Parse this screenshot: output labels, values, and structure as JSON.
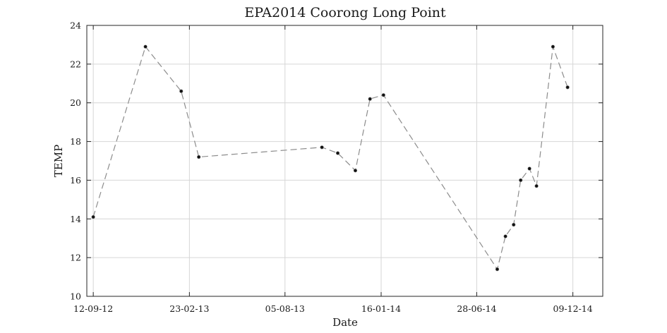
{
  "chart_data": {
    "type": "line",
    "title": "EPA2014 Coorong Long Point",
    "xlabel": "Date",
    "ylabel": "TEMP",
    "x_axis_type": "date",
    "xlim": [
      "2012-09-01",
      "2015-01-29"
    ],
    "ylim": [
      10,
      24
    ],
    "x_ticks": [
      {
        "date": "2012-09-12",
        "label": "12-09-12"
      },
      {
        "date": "2013-02-23",
        "label": "23-02-13"
      },
      {
        "date": "2013-08-05",
        "label": "05-08-13"
      },
      {
        "date": "2014-01-16",
        "label": "16-01-14"
      },
      {
        "date": "2014-06-28",
        "label": "28-06-14"
      },
      {
        "date": "2014-12-09",
        "label": "09-12-14"
      }
    ],
    "y_ticks": [
      10,
      12,
      14,
      16,
      18,
      20,
      22,
      24
    ],
    "grid": true,
    "legend": "none",
    "line_style": "dashed",
    "line_color": "#8c8c8c",
    "marker_color": "#111111",
    "series": [
      {
        "points": [
          {
            "date": "2012-09-12",
            "value": 14.1
          },
          {
            "date": "2012-12-10",
            "value": 22.9
          },
          {
            "date": "2013-02-09",
            "value": 20.6
          },
          {
            "date": "2013-03-11",
            "value": 17.2
          },
          {
            "date": "2013-10-07",
            "value": 17.7
          },
          {
            "date": "2013-11-03",
            "value": 17.4
          },
          {
            "date": "2013-12-03",
            "value": 16.5
          },
          {
            "date": "2013-12-28",
            "value": 20.2
          },
          {
            "date": "2014-01-20",
            "value": 20.4
          },
          {
            "date": "2014-08-02",
            "value": 11.4
          },
          {
            "date": "2014-08-16",
            "value": 13.1
          },
          {
            "date": "2014-08-30",
            "value": 13.7
          },
          {
            "date": "2014-09-11",
            "value": 16.0
          },
          {
            "date": "2014-09-26",
            "value": 16.6
          },
          {
            "date": "2014-10-08",
            "value": 15.7
          },
          {
            "date": "2014-11-05",
            "value": 22.9
          },
          {
            "date": "2014-11-30",
            "value": 20.8
          }
        ]
      }
    ]
  }
}
